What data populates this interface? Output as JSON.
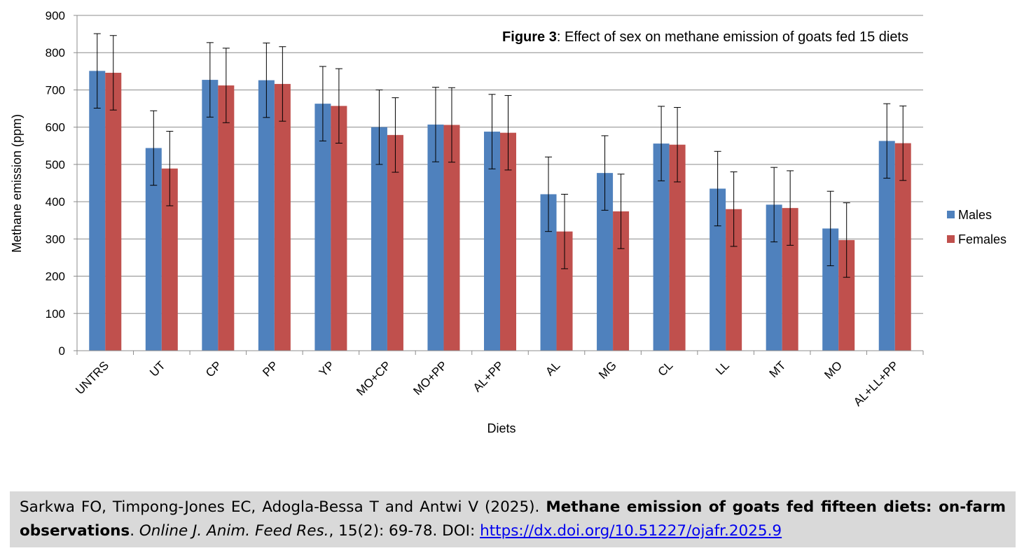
{
  "chart_data": {
    "type": "bar",
    "title_bold": "Figure 3",
    "title_rest": ": Effect of sex on methane emission of goats fed 15 diets",
    "xlabel": "Diets",
    "ylabel": "Methane emission (ppm)",
    "ylim": [
      0,
      900
    ],
    "yticks": [
      0,
      100,
      200,
      300,
      400,
      500,
      600,
      700,
      800,
      900
    ],
    "grid": true,
    "legend_position": "right",
    "categories": [
      "UNTRS",
      "UT",
      "CP",
      "PP",
      "YP",
      "MO+CP",
      "MO+PP",
      "AL+PP",
      "AL",
      "MG",
      "CL",
      "LL",
      "MT",
      "MO",
      "AL+LL+PP"
    ],
    "series": [
      {
        "name": "Males",
        "color": "#4f81bd",
        "values": [
          751,
          544,
          727,
          726,
          663,
          600,
          607,
          588,
          420,
          477,
          556,
          435,
          392,
          328,
          563
        ],
        "error": [
          100,
          100,
          100,
          100,
          100,
          100,
          100,
          100,
          100,
          100,
          100,
          100,
          100,
          100,
          100
        ]
      },
      {
        "name": "Females",
        "color": "#c0504d",
        "values": [
          746,
          489,
          712,
          716,
          657,
          579,
          606,
          585,
          320,
          374,
          553,
          380,
          383,
          297,
          557
        ],
        "error": [
          100,
          100,
          100,
          100,
          100,
          100,
          100,
          100,
          100,
          100,
          100,
          100,
          100,
          100,
          100
        ]
      }
    ]
  },
  "citation": {
    "authors": "Sarkwa FO, Timpong-Jones EC, Adogla-Bessa T and Antwi V (2025). ",
    "title": "Methane emission of goats fed fifteen diets: on-farm observations",
    "sep1": ". ",
    "journal": "Online J. Anim. Feed Res.",
    "details": ", 15(2): 69-78. DOI: ",
    "doi_link": "https://dx.doi.org/10.51227/ojafr.2025.9"
  }
}
